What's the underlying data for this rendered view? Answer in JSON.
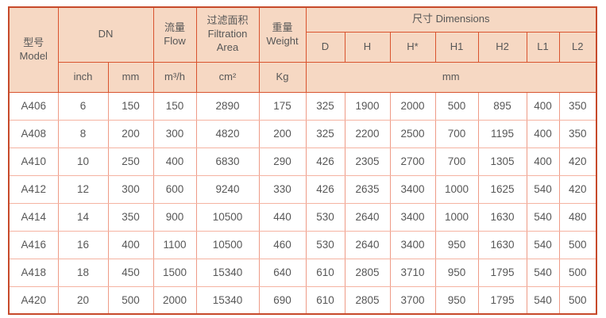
{
  "table": {
    "header": {
      "model": "型号\nModel",
      "dn": "DN",
      "flow": "流量\nFlow",
      "filtration_area": "过滤面积\nFiltration\nArea",
      "weight": "重量\nWeight",
      "dimensions": "尺寸 Dimensions",
      "dim_cols": [
        "D",
        "H",
        "H*",
        "H1",
        "H2",
        "L1",
        "L2"
      ],
      "units": {
        "inch": "inch",
        "mm": "mm",
        "flow": "m³/h",
        "filtration_area": "cm²",
        "weight": "Kg",
        "dimensions_mm": "mm"
      }
    },
    "rows": [
      [
        "A406",
        "6",
        "150",
        "150",
        "2890",
        "175",
        "325",
        "1900",
        "2000",
        "500",
        "895",
        "400",
        "350"
      ],
      [
        "A408",
        "8",
        "200",
        "300",
        "4820",
        "200",
        "325",
        "2200",
        "2500",
        "700",
        "1195",
        "400",
        "350"
      ],
      [
        "A410",
        "10",
        "250",
        "400",
        "6830",
        "290",
        "426",
        "2305",
        "2700",
        "700",
        "1305",
        "400",
        "420"
      ],
      [
        "A412",
        "12",
        "300",
        "600",
        "9240",
        "330",
        "426",
        "2635",
        "3400",
        "1000",
        "1625",
        "540",
        "420"
      ],
      [
        "A414",
        "14",
        "350",
        "900",
        "10500",
        "440",
        "530",
        "2640",
        "3400",
        "1000",
        "1630",
        "540",
        "480"
      ],
      [
        "A416",
        "16",
        "400",
        "1100",
        "10500",
        "460",
        "530",
        "2640",
        "3400",
        "950",
        "1630",
        "540",
        "500"
      ],
      [
        "A418",
        "18",
        "450",
        "1500",
        "15340",
        "640",
        "610",
        "2805",
        "3710",
        "950",
        "1795",
        "540",
        "500"
      ],
      [
        "A420",
        "20",
        "500",
        "2000",
        "15340",
        "690",
        "610",
        "2805",
        "3700",
        "950",
        "1795",
        "540",
        "500"
      ]
    ],
    "colors": {
      "header_bg": "#f6d8c3",
      "header_border": "#d9532e",
      "outer_border": "#c74a2b",
      "row_divider": "#f5b3a2",
      "col_divider": "#ee9b87",
      "text": "#575757"
    }
  }
}
